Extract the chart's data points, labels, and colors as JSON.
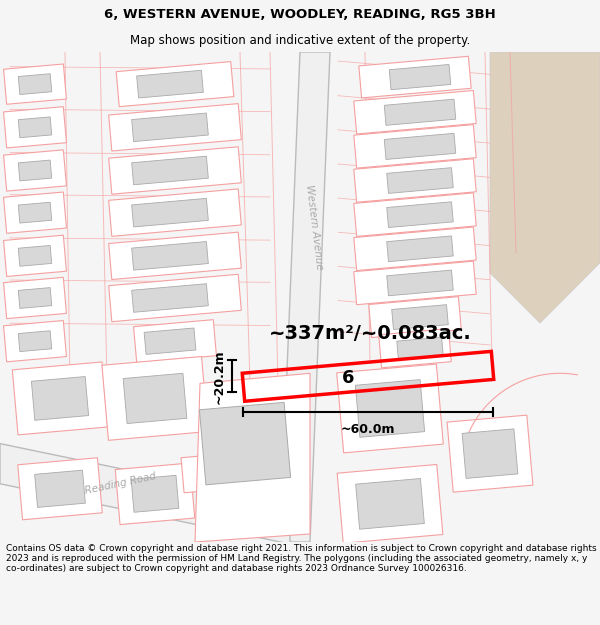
{
  "title_line1": "6, WESTERN AVENUE, WOODLEY, READING, RG5 3BH",
  "title_line2": "Map shows position and indicative extent of the property.",
  "area_label": "~337m²/~0.083ac.",
  "width_label": "~60.0m",
  "height_label": "~20.2m",
  "plot_number": "6",
  "footer_text": "Contains OS data © Crown copyright and database right 2021. This information is subject to Crown copyright and database rights 2023 and is reproduced with the permission of HM Land Registry. The polygons (including the associated geometry, namely x, y co-ordinates) are subject to Crown copyright and database rights 2023 Ordnance Survey 100026316.",
  "bg_color": "#f5f5f5",
  "map_bg": "#ffffff",
  "plot_line_color": "#ff0000",
  "boundary_color": "#f5a0a0",
  "boundary_color2": "#e08080",
  "building_fill": "#d8d8d8",
  "building_edge": "#aaaaaa",
  "road_fill": "#eeeeee",
  "road_edge": "#cccccc",
  "tan_area": "#ddd0bc",
  "green_area": "#dde8dd",
  "western_ave_color": "#bbbbbb",
  "title_fontsize": 9.5,
  "subtitle_fontsize": 8.5,
  "footer_fontsize": 6.5,
  "area_fontsize": 14,
  "measure_fontsize": 9
}
